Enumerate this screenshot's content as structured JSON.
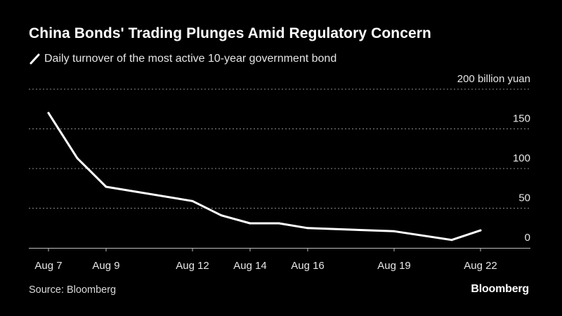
{
  "header": {
    "title": "China Bonds' Trading Plunges Amid Regulatory Concern"
  },
  "footer": {
    "source": "Source: Bloomberg",
    "brand": "Bloomberg"
  },
  "colors": {
    "background": "#000000",
    "line": "#ffffff",
    "grid": "#8a8a8a"
  },
  "chart_data": {
    "type": "line",
    "title": "China Bonds' Trading Plunges Amid Regulatory Concern",
    "unit_label": "200 billion yuan",
    "xlabel": "",
    "ylabel": "",
    "ylim": [
      0,
      200
    ],
    "yticks": [
      0,
      50,
      100,
      150,
      200
    ],
    "ytick_labels": [
      "0",
      "50",
      "100",
      "150",
      "200 billion yuan"
    ],
    "grid": true,
    "legend_position": "top-left",
    "x_domain": [
      "Aug 7",
      "Aug 8",
      "Aug 9",
      "Aug 10",
      "Aug 11",
      "Aug 12",
      "Aug 13",
      "Aug 14",
      "Aug 15",
      "Aug 16",
      "Aug 17",
      "Aug 18",
      "Aug 19",
      "Aug 20",
      "Aug 21",
      "Aug 22"
    ],
    "xticks": [
      "Aug 7",
      "Aug 9",
      "Aug 12",
      "Aug 14",
      "Aug 16",
      "Aug 19",
      "Aug 22"
    ],
    "series": [
      {
        "name": "Daily turnover of the most active 10-year government bond",
        "points": [
          {
            "x": "Aug 7",
            "y": 170
          },
          {
            "x": "Aug 8",
            "y": 113
          },
          {
            "x": "Aug 9",
            "y": 77
          },
          {
            "x": "Aug 12",
            "y": 59
          },
          {
            "x": "Aug 13",
            "y": 41
          },
          {
            "x": "Aug 14",
            "y": 31
          },
          {
            "x": "Aug 15",
            "y": 31
          },
          {
            "x": "Aug 16",
            "y": 25
          },
          {
            "x": "Aug 19",
            "y": 21
          },
          {
            "x": "Aug 21",
            "y": 10
          },
          {
            "x": "Aug 22",
            "y": 22
          }
        ]
      }
    ]
  }
}
